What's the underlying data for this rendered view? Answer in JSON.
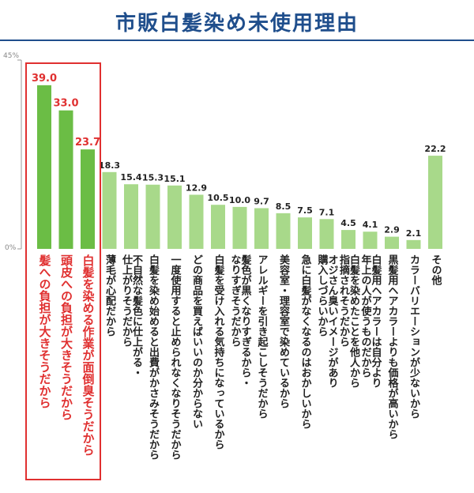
{
  "title": "市販白髪染め未使用理由",
  "chart_data": {
    "type": "bar",
    "ylim": [
      0,
      45
    ],
    "yticks": [
      "0%",
      "45%"
    ],
    "highlight_count": 3,
    "colors": {
      "bar": "#a8d98a",
      "bar_highlight": "#6bbd45",
      "label": "#222222",
      "label_highlight": "#e03030",
      "axis": "#999999"
    },
    "categories": [
      "髪への負担が大きそうだから",
      "頭皮への負担が大きそうだから",
      "白髪を染める作業が面倒臭そうだから",
      "薄毛が心配だから",
      "不自然な髪色に仕上がる・仕上がりそうだから",
      "白髪を染め始めると出費がかさみそうだから",
      "一度使用すると止められなくなりそうだから",
      "どの商品を買えばいいのか分からない",
      "白髪を受け入れる気持ちになっているから",
      "髪色が黒くなりすぎるから・なりすぎそうだから",
      "アレルギーを引き起こしそうだから",
      "美容室・理容室で染めているから",
      "急に白髪がなくなるのはおかしいから",
      "オジさん臭いイメージがあり購入しづらいから",
      "白髪を染めたことを他人から指摘されそうだから",
      "白髪用ヘアカラーは自分より年上の人が使うものだから",
      "黒髪用ヘアカラーよりも価格が高いから",
      "カラーバリエーションが少ないから",
      "その他"
    ],
    "label_lines": [
      [
        "髪への負担が大きそうだから"
      ],
      [
        "頭皮への負担が大きそうだから"
      ],
      [
        "白髪を染める作業が面倒臭そうだから"
      ],
      [
        "薄毛が心配だから"
      ],
      [
        "不自然な髪色に仕上がる・",
        "仕上がりそうだから"
      ],
      [
        "白髪を染め始めると出費がかさみそうだから"
      ],
      [
        "一度使用すると止められなくなりそうだから"
      ],
      [
        "どの商品を買えばいいのか分からない"
      ],
      [
        "白髪を受け入れる気持ちになっているから"
      ],
      [
        "髪色が黒くなりすぎるから・",
        "なりすぎそうだから"
      ],
      [
        "アレルギーを引き起こしそうだから"
      ],
      [
        "美容室・理容室で染めているから"
      ],
      [
        "急に白髪がなくなるのはおかしいから"
      ],
      [
        "オジさん臭いイメージがあり",
        "購入しづらいから"
      ],
      [
        "白髪を染めたことを他人から",
        "指摘されそうだから"
      ],
      [
        "白髪用ヘアカラーは自分より",
        "年上の人が使うものだから"
      ],
      [
        "黒髪用ヘアカラーよりも価格が高いから"
      ],
      [
        "カラーバリエーションが少ないから"
      ],
      [
        "その他"
      ]
    ],
    "values": [
      39.0,
      33.0,
      23.7,
      18.3,
      15.4,
      15.3,
      15.1,
      12.9,
      10.5,
      10.0,
      9.7,
      8.5,
      7.5,
      7.1,
      4.5,
      4.1,
      2.9,
      2.1,
      22.2
    ],
    "value_labels": [
      "39.0",
      "33.0",
      "23.7",
      "18.3",
      "15.4",
      "15.3",
      "15.1",
      "12.9",
      "10.5",
      "10.0",
      "9.7",
      "8.5",
      "7.5",
      "7.1",
      "4.5",
      "4.1",
      "2.9",
      "2.1",
      "22.2"
    ]
  }
}
